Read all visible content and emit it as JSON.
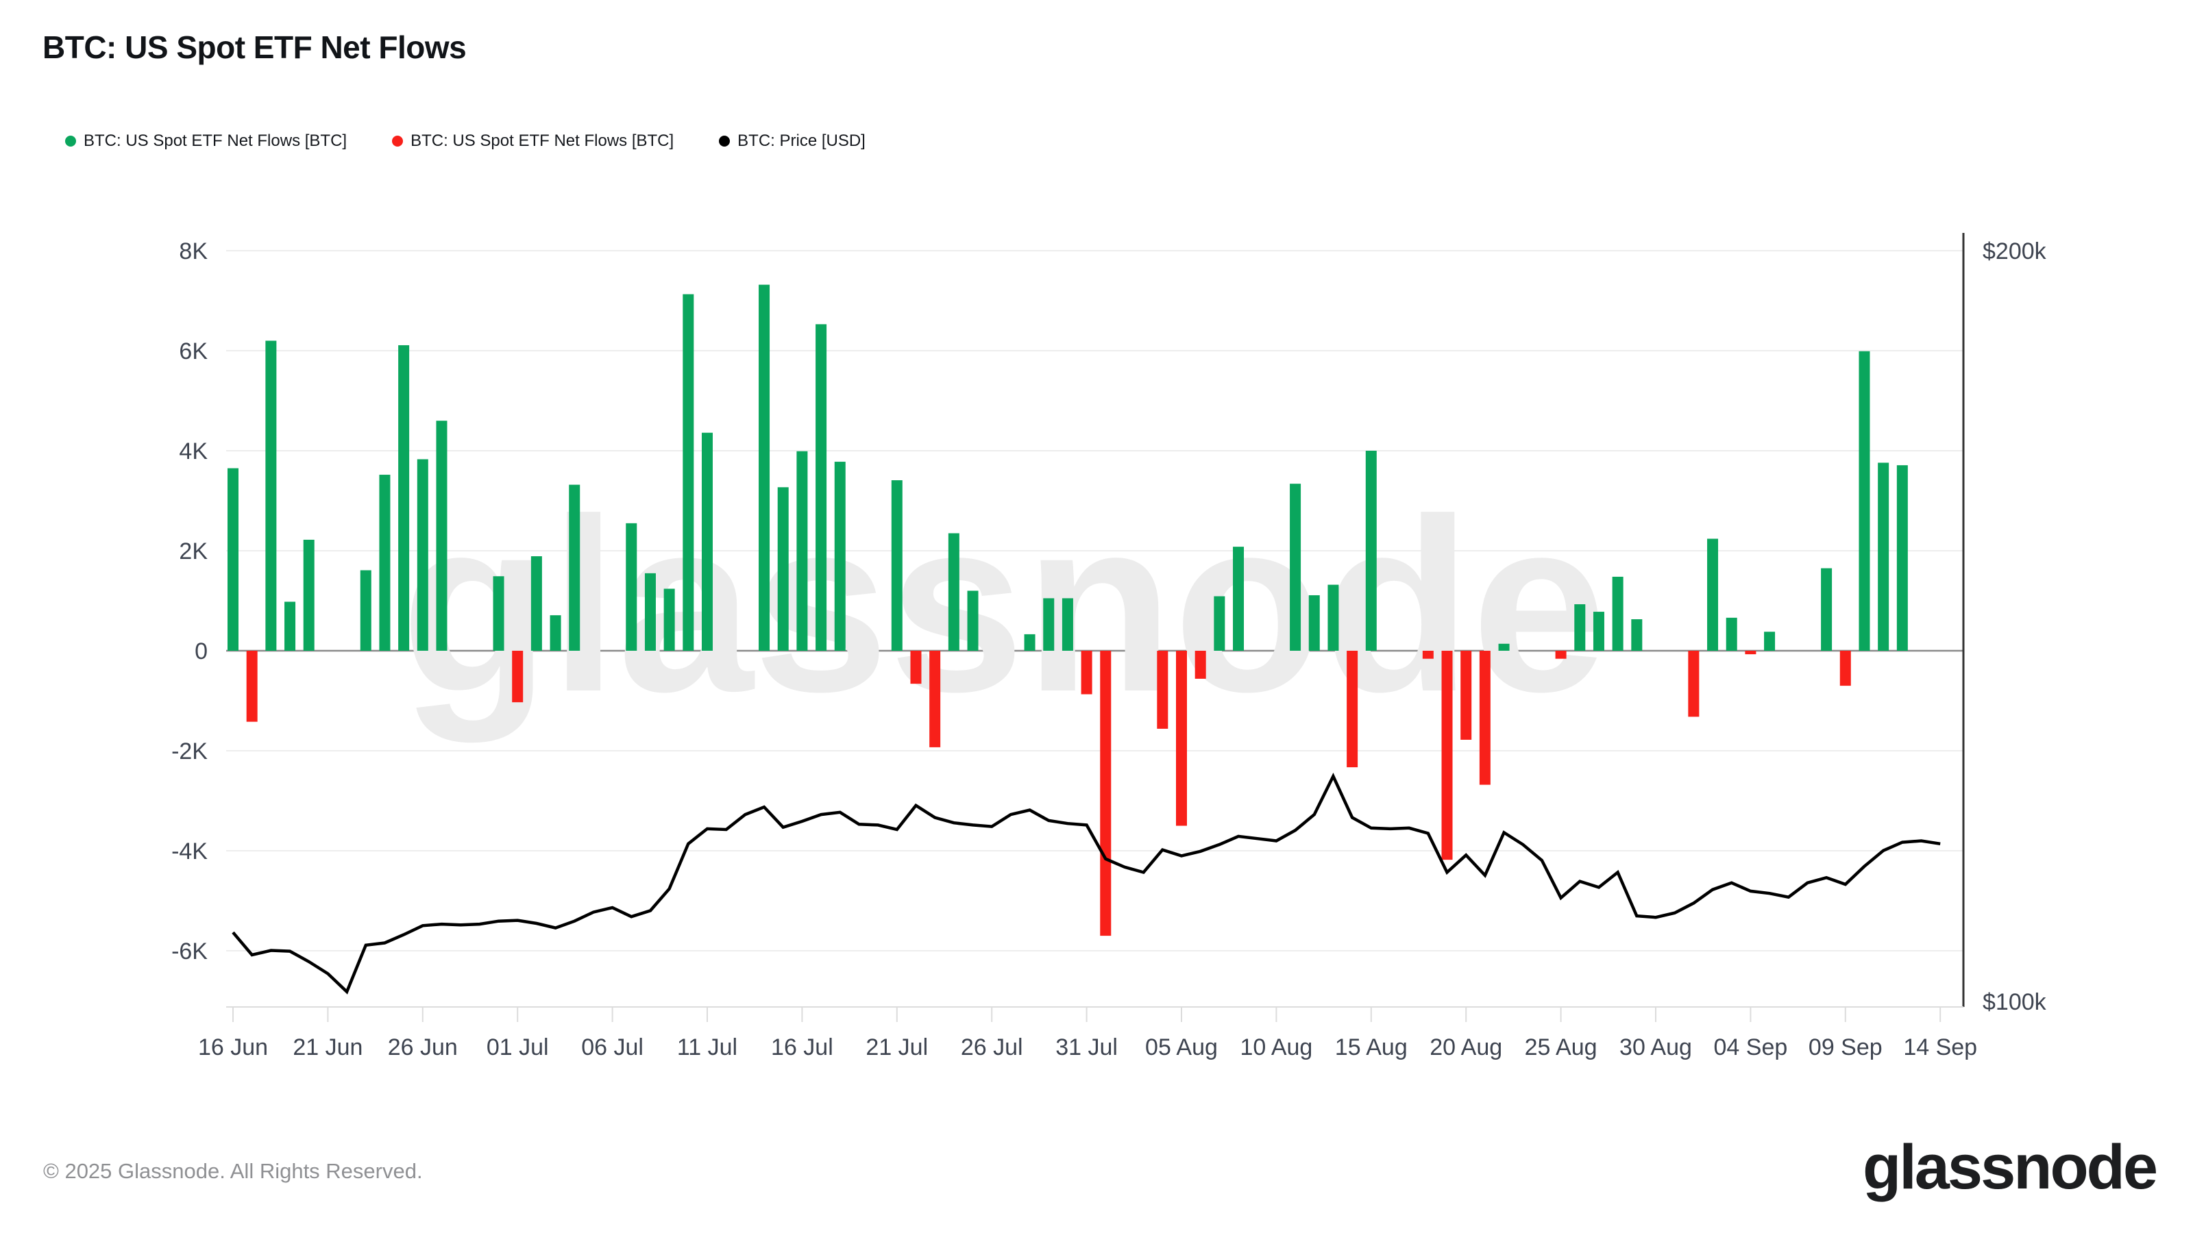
{
  "title": "BTC: US Spot ETF Net Flows",
  "legend": {
    "items": [
      {
        "label": "BTC: US Spot ETF Net Flows [BTC]",
        "color": "#0aa65d"
      },
      {
        "label": "BTC: US Spot ETF Net Flows [BTC]",
        "color": "#f8201a"
      },
      {
        "label": "BTC: Price [USD]",
        "color": "#000000"
      }
    ]
  },
  "watermark": "glassnode",
  "footer": {
    "copyright": "© 2025 Glassnode. All Rights Reserved."
  },
  "brand": {
    "logo_text": "glassnode"
  },
  "chart_data": {
    "type": "bar",
    "title": "BTC: US Spot ETF Net Flows",
    "grid": true,
    "legend_position": "top-left",
    "y_axis_left": {
      "unit": "K BTC",
      "tick_labels": [
        "8K",
        "6K",
        "4K",
        "2K",
        "0",
        "-2K",
        "-4K",
        "-6K"
      ],
      "tick_values_k": [
        8,
        6,
        4,
        2,
        0,
        -2,
        -4,
        -6
      ],
      "range_k": [
        -7.1,
        8.3
      ]
    },
    "y_axis_right": {
      "unit": "USD",
      "tick_labels": [
        "$200k",
        "$100k"
      ],
      "tick_values_k": [
        200,
        100
      ]
    },
    "x_axis": {
      "tick_labels": [
        "16 Jun",
        "21 Jun",
        "26 Jun",
        "01 Jul",
        "06 Jul",
        "11 Jul",
        "16 Jul",
        "21 Jul",
        "26 Jul",
        "31 Jul",
        "05 Aug",
        "10 Aug",
        "15 Aug",
        "20 Aug",
        "25 Aug",
        "30 Aug",
        "04 Sep",
        "09 Sep",
        "14 Sep"
      ]
    },
    "series": [
      {
        "name": "BTC: US Spot ETF Net Flows [BTC]",
        "type": "bar",
        "unit": "K BTC",
        "color_positive": "#0aa65d",
        "color_negative": "#f8201a",
        "values": [
          {
            "date": "16 Jun",
            "value": 3.65
          },
          {
            "date": "17 Jun",
            "value": -1.42
          },
          {
            "date": "18 Jun",
            "value": 6.2
          },
          {
            "date": "19 Jun",
            "value": 0.98
          },
          {
            "date": "20 Jun",
            "value": 2.22
          },
          {
            "date": "23 Jun",
            "value": 1.61
          },
          {
            "date": "24 Jun",
            "value": 3.52
          },
          {
            "date": "25 Jun",
            "value": 6.11
          },
          {
            "date": "26 Jun",
            "value": 3.83
          },
          {
            "date": "27 Jun",
            "value": 4.6
          },
          {
            "date": "30 Jun",
            "value": 1.49
          },
          {
            "date": "01 Jul",
            "value": -1.03
          },
          {
            "date": "02 Jul",
            "value": 1.89
          },
          {
            "date": "03 Jul",
            "value": 0.71
          },
          {
            "date": "04 Jul",
            "value": 3.32
          },
          {
            "date": "07 Jul",
            "value": 2.55
          },
          {
            "date": "08 Jul",
            "value": 1.55
          },
          {
            "date": "09 Jul",
            "value": 1.24
          },
          {
            "date": "10 Jul",
            "value": 7.13
          },
          {
            "date": "11 Jul",
            "value": 4.36
          },
          {
            "date": "14 Jul",
            "value": 7.32
          },
          {
            "date": "15 Jul",
            "value": 3.27
          },
          {
            "date": "16 Jul",
            "value": 3.99
          },
          {
            "date": "17 Jul",
            "value": 6.53
          },
          {
            "date": "18 Jul",
            "value": 3.78
          },
          {
            "date": "21 Jul",
            "value": 3.41
          },
          {
            "date": "22 Jul",
            "value": -0.66
          },
          {
            "date": "23 Jul",
            "value": -1.93
          },
          {
            "date": "24 Jul",
            "value": 2.35
          },
          {
            "date": "25 Jul",
            "value": 1.2
          },
          {
            "date": "28 Jul",
            "value": 0.33
          },
          {
            "date": "29 Jul",
            "value": 1.05
          },
          {
            "date": "30 Jul",
            "value": 1.05
          },
          {
            "date": "31 Jul",
            "value": -0.87
          },
          {
            "date": "01 Aug",
            "value": -5.7
          },
          {
            "date": "04 Aug",
            "value": -1.56
          },
          {
            "date": "05 Aug",
            "value": -3.5
          },
          {
            "date": "06 Aug",
            "value": -0.56
          },
          {
            "date": "07 Aug",
            "value": 1.09
          },
          {
            "date": "08 Aug",
            "value": 2.08
          },
          {
            "date": "11 Aug",
            "value": 3.34
          },
          {
            "date": "12 Aug",
            "value": 1.11
          },
          {
            "date": "13 Aug",
            "value": 1.32
          },
          {
            "date": "14 Aug",
            "value": -2.33
          },
          {
            "date": "15 Aug",
            "value": 4.0
          },
          {
            "date": "18 Aug",
            "value": -0.16
          },
          {
            "date": "19 Aug",
            "value": -4.18
          },
          {
            "date": "20 Aug",
            "value": -1.78
          },
          {
            "date": "21 Aug",
            "value": -2.68
          },
          {
            "date": "22 Aug",
            "value": 0.14
          },
          {
            "date": "25 Aug",
            "value": -0.16
          },
          {
            "date": "26 Aug",
            "value": 0.93
          },
          {
            "date": "27 Aug",
            "value": 0.78
          },
          {
            "date": "28 Aug",
            "value": 1.48
          },
          {
            "date": "29 Aug",
            "value": 0.63
          },
          {
            "date": "01 Sep",
            "value": -1.32
          },
          {
            "date": "02 Sep",
            "value": 2.24
          },
          {
            "date": "03 Sep",
            "value": 0.66
          },
          {
            "date": "04 Sep",
            "value": -0.07
          },
          {
            "date": "05 Sep",
            "value": 0.38
          },
          {
            "date": "08 Sep",
            "value": 1.65
          },
          {
            "date": "09 Sep",
            "value": -0.7
          },
          {
            "date": "10 Sep",
            "value": 5.99
          },
          {
            "date": "11 Sep",
            "value": 3.76
          },
          {
            "date": "12 Sep",
            "value": 3.71
          }
        ]
      },
      {
        "name": "BTC: Price [USD]",
        "type": "line",
        "unit": "k USD",
        "color": "#000000",
        "values": [
          {
            "date": "16 Jun",
            "value": 109.2
          },
          {
            "date": "17 Jun",
            "value": 106.2
          },
          {
            "date": "18 Jun",
            "value": 106.8
          },
          {
            "date": "19 Jun",
            "value": 106.7
          },
          {
            "date": "20 Jun",
            "value": 105.3
          },
          {
            "date": "21 Jun",
            "value": 103.7
          },
          {
            "date": "22 Jun",
            "value": 101.3
          },
          {
            "date": "23 Jun",
            "value": 107.5
          },
          {
            "date": "24 Jun",
            "value": 107.8
          },
          {
            "date": "25 Jun",
            "value": 108.9
          },
          {
            "date": "26 Jun",
            "value": 110.1
          },
          {
            "date": "27 Jun",
            "value": 110.3
          },
          {
            "date": "28 Jun",
            "value": 110.2
          },
          {
            "date": "29 Jun",
            "value": 110.3
          },
          {
            "date": "30 Jun",
            "value": 110.7
          },
          {
            "date": "01 Jul",
            "value": 110.8
          },
          {
            "date": "02 Jul",
            "value": 110.4
          },
          {
            "date": "03 Jul",
            "value": 109.8
          },
          {
            "date": "04 Jul",
            "value": 110.7
          },
          {
            "date": "05 Jul",
            "value": 111.9
          },
          {
            "date": "06 Jul",
            "value": 112.5
          },
          {
            "date": "07 Jul",
            "value": 111.3
          },
          {
            "date": "08 Jul",
            "value": 112.1
          },
          {
            "date": "09 Jul",
            "value": 115.0
          },
          {
            "date": "10 Jul",
            "value": 121.0
          },
          {
            "date": "11 Jul",
            "value": 123.0
          },
          {
            "date": "12 Jul",
            "value": 122.9
          },
          {
            "date": "13 Jul",
            "value": 124.9
          },
          {
            "date": "14 Jul",
            "value": 125.9
          },
          {
            "date": "15 Jul",
            "value": 123.2
          },
          {
            "date": "16 Jul",
            "value": 124.0
          },
          {
            "date": "17 Jul",
            "value": 124.9
          },
          {
            "date": "18 Jul",
            "value": 125.2
          },
          {
            "date": "19 Jul",
            "value": 123.6
          },
          {
            "date": "20 Jul",
            "value": 123.5
          },
          {
            "date": "21 Jul",
            "value": 122.9
          },
          {
            "date": "22 Jul",
            "value": 126.1
          },
          {
            "date": "23 Jul",
            "value": 124.5
          },
          {
            "date": "24 Jul",
            "value": 123.8
          },
          {
            "date": "25 Jul",
            "value": 123.5
          },
          {
            "date": "26 Jul",
            "value": 123.3
          },
          {
            "date": "27 Jul",
            "value": 124.9
          },
          {
            "date": "28 Jul",
            "value": 125.5
          },
          {
            "date": "29 Jul",
            "value": 124.1
          },
          {
            "date": "30 Jul",
            "value": 123.7
          },
          {
            "date": "31 Jul",
            "value": 123.5
          },
          {
            "date": "01 Aug",
            "value": 119.0
          },
          {
            "date": "02 Aug",
            "value": 117.9
          },
          {
            "date": "03 Aug",
            "value": 117.2
          },
          {
            "date": "04 Aug",
            "value": 120.2
          },
          {
            "date": "05 Aug",
            "value": 119.4
          },
          {
            "date": "06 Aug",
            "value": 120.0
          },
          {
            "date": "07 Aug",
            "value": 120.9
          },
          {
            "date": "08 Aug",
            "value": 122.0
          },
          {
            "date": "09 Aug",
            "value": 121.7
          },
          {
            "date": "10 Aug",
            "value": 121.4
          },
          {
            "date": "11 Aug",
            "value": 122.8
          },
          {
            "date": "12 Aug",
            "value": 124.9
          },
          {
            "date": "13 Aug",
            "value": 130.0
          },
          {
            "date": "14 Aug",
            "value": 124.5
          },
          {
            "date": "15 Aug",
            "value": 123.1
          },
          {
            "date": "16 Aug",
            "value": 123.0
          },
          {
            "date": "17 Aug",
            "value": 123.1
          },
          {
            "date": "18 Aug",
            "value": 122.4
          },
          {
            "date": "19 Aug",
            "value": 117.2
          },
          {
            "date": "20 Aug",
            "value": 119.5
          },
          {
            "date": "21 Aug",
            "value": 116.8
          },
          {
            "date": "22 Aug",
            "value": 122.5
          },
          {
            "date": "23 Aug",
            "value": 120.9
          },
          {
            "date": "24 Aug",
            "value": 118.8
          },
          {
            "date": "25 Aug",
            "value": 113.8
          },
          {
            "date": "26 Aug",
            "value": 116.0
          },
          {
            "date": "27 Aug",
            "value": 115.2
          },
          {
            "date": "28 Aug",
            "value": 117.2
          },
          {
            "date": "29 Aug",
            "value": 111.4
          },
          {
            "date": "30 Aug",
            "value": 111.2
          },
          {
            "date": "31 Aug",
            "value": 111.8
          },
          {
            "date": "01 Sep",
            "value": 113.1
          },
          {
            "date": "02 Sep",
            "value": 114.9
          },
          {
            "date": "03 Sep",
            "value": 115.8
          },
          {
            "date": "04 Sep",
            "value": 114.7
          },
          {
            "date": "05 Sep",
            "value": 114.4
          },
          {
            "date": "06 Sep",
            "value": 113.9
          },
          {
            "date": "07 Sep",
            "value": 115.8
          },
          {
            "date": "08 Sep",
            "value": 116.5
          },
          {
            "date": "09 Sep",
            "value": 115.6
          },
          {
            "date": "10 Sep",
            "value": 118.0
          },
          {
            "date": "11 Sep",
            "value": 120.1
          },
          {
            "date": "12 Sep",
            "value": 121.2
          },
          {
            "date": "13 Sep",
            "value": 121.4
          },
          {
            "date": "14 Sep",
            "value": 121.0
          }
        ]
      }
    ],
    "colors": {
      "grid": "#ededed",
      "zero_line": "#8a8a8a",
      "axis_bottom": "#dcdcdc",
      "axis_right_spine": "#333333",
      "tick_text": "#3e4450",
      "watermark": "#ececec"
    }
  }
}
